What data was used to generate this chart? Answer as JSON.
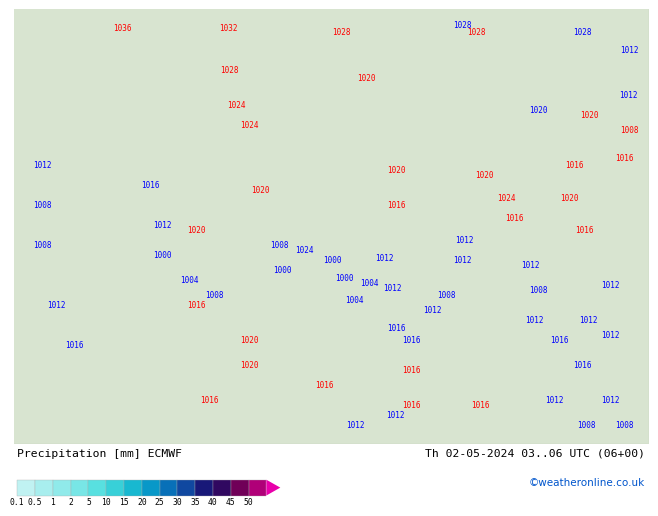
{
  "title_left": "Precipitation [mm] ECMWF",
  "title_right": "Th 02-05-2024 03..06 UTC (06+00)",
  "credit": "©weatheronline.co.uk",
  "colorbar_labels": [
    "0.1",
    "0.5",
    "1",
    "2",
    "5",
    "10",
    "15",
    "20",
    "25",
    "30",
    "35",
    "40",
    "45",
    "50"
  ],
  "cb_colors": [
    "#b8f0f0",
    "#98ecec",
    "#78e8e8",
    "#58e0e0",
    "#38d8d8",
    "#28ccd4",
    "#18b0cc",
    "#1090c0",
    "#1070b0",
    "#0848a0",
    "#102870",
    "#280860",
    "#500058",
    "#800060",
    "#b00078",
    "#d80098",
    "#f800b8",
    "#ff40d0",
    "#ff80e8"
  ],
  "map_bg_light": "#e8f0e0",
  "map_bg_ocean": "#c8d8c8",
  "bottom_bg": "#ffffff",
  "figure_bg": "#ffffff",
  "label_color_left": "#000000",
  "label_color_right": "#000000",
  "credit_color": "#0055cc"
}
